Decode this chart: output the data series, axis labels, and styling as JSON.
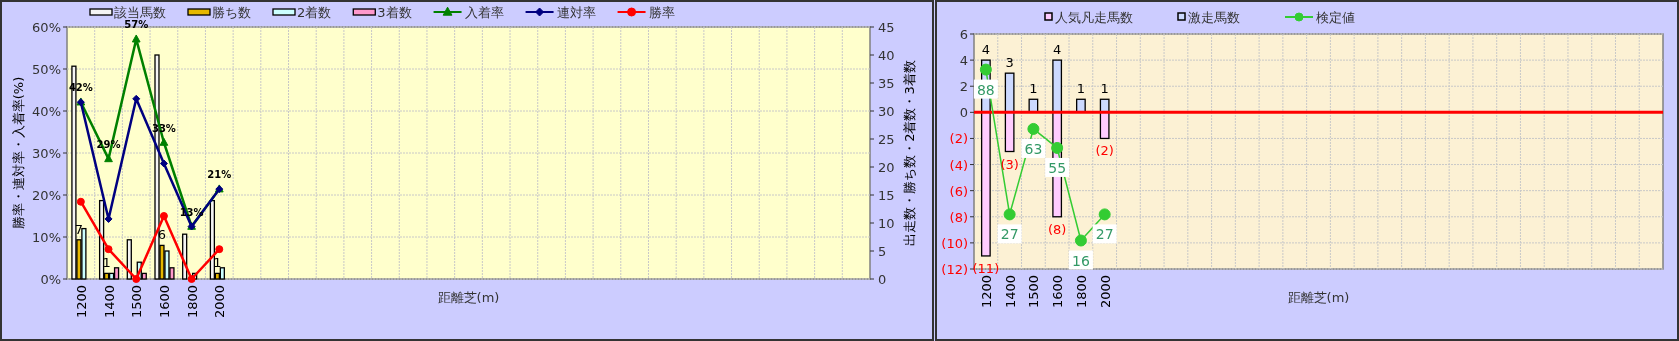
{
  "chart_data": [
    {
      "type": "bar",
      "xlabel": "距離芝(m)",
      "ylabel": "勝率・連対率・入着率(%)",
      "y2label": "出走数・勝ち数・2着数・3着数",
      "legend": "top",
      "grid": true,
      "categories": [
        "1200",
        "1400",
        "1500",
        "1600",
        "1800",
        "2000",
        null,
        null,
        null,
        null,
        null,
        null,
        null,
        null,
        null,
        null,
        null,
        null,
        null,
        null,
        null,
        null,
        null,
        null,
        null,
        null,
        null,
        null,
        null
      ],
      "ylim": [
        0,
        60
      ],
      "yticks": [
        {
          "value": 0,
          "label": "0%"
        },
        {
          "value": 10,
          "label": "10%"
        },
        {
          "value": 20,
          "label": "20%"
        },
        {
          "value": 30,
          "label": "30%"
        },
        {
          "value": 40,
          "label": "40%"
        },
        {
          "value": 50,
          "label": "50%"
        },
        {
          "value": 60,
          "label": "60%"
        }
      ],
      "y2lim": [
        0,
        45
      ],
      "y2ticks": [
        0,
        5,
        10,
        15,
        20,
        25,
        30,
        35,
        40,
        45
      ],
      "series": [
        {
          "name": "該当馬数",
          "axis": "y2",
          "color": "#f4f4f4",
          "values": [
            38,
            14,
            7,
            40,
            8,
            14,
            null,
            null,
            null,
            null,
            null,
            null,
            null,
            null,
            null,
            null,
            null,
            null,
            null,
            null,
            null,
            null,
            null,
            null,
            null,
            null,
            null,
            null,
            null
          ]
        },
        {
          "name": "勝ち数",
          "axis": "y2",
          "color": "#e6b800",
          "values": [
            7,
            1,
            0,
            6,
            0,
            1,
            null,
            null,
            null,
            null,
            null,
            null,
            null,
            null,
            null,
            null,
            null,
            null,
            null,
            null,
            null,
            null,
            null,
            null,
            null,
            null,
            null,
            null,
            null
          ],
          "value_labels": [
            "7",
            "1",
            null,
            "6",
            null,
            "1",
            null,
            null,
            null,
            null,
            null,
            null,
            null,
            null,
            null,
            null,
            null,
            null,
            null,
            null,
            null,
            null,
            null,
            null,
            null,
            null,
            null,
            null,
            null
          ]
        },
        {
          "name": "2着数",
          "axis": "y2",
          "color": "#ccffff",
          "values": [
            9,
            1,
            3,
            5,
            1,
            2,
            null,
            null,
            null,
            null,
            null,
            null,
            null,
            null,
            null,
            null,
            null,
            null,
            null,
            null,
            null,
            null,
            null,
            null,
            null,
            null,
            null,
            null,
            null
          ]
        },
        {
          "name": "3着数",
          "axis": "y2",
          "color": "#ff99cc",
          "values": [
            0,
            2,
            1,
            2,
            0,
            0,
            null,
            null,
            null,
            null,
            null,
            null,
            null,
            null,
            null,
            null,
            null,
            null,
            null,
            null,
            null,
            null,
            null,
            null,
            null,
            null,
            null,
            null,
            null
          ]
        },
        {
          "name": "入着率",
          "type": "line",
          "marker": "triangle",
          "color": "#008000",
          "values": [
            42.1,
            28.6,
            57.1,
            32.5,
            12.5,
            21.4,
            null,
            null,
            null,
            null,
            null,
            null,
            null,
            null,
            null,
            null,
            null,
            null,
            null,
            null,
            null,
            null,
            null,
            null,
            null,
            null,
            null,
            null,
            null
          ],
          "value_labels": [
            "42%",
            "29%",
            "57%",
            "33%",
            "13%",
            "21%",
            null,
            null,
            null,
            null,
            null,
            null,
            null,
            null,
            null,
            null,
            null,
            null,
            null,
            null,
            null,
            null,
            null,
            null,
            null,
            null,
            null,
            null,
            null
          ]
        },
        {
          "name": "連対率",
          "type": "line",
          "marker": "diamond",
          "color": "#000080",
          "values": [
            42.1,
            14.3,
            42.9,
            27.5,
            12.5,
            21.4,
            null,
            null,
            null,
            null,
            null,
            null,
            null,
            null,
            null,
            null,
            null,
            null,
            null,
            null,
            null,
            null,
            null,
            null,
            null,
            null,
            null,
            null,
            null
          ]
        },
        {
          "name": "勝率",
          "type": "line",
          "marker": "circle",
          "color": "#ff0000",
          "values": [
            18.4,
            7.1,
            0,
            15,
            0,
            7.1,
            null,
            null,
            null,
            null,
            null,
            null,
            null,
            null,
            null,
            null,
            null,
            null,
            null,
            null,
            null,
            null,
            null,
            null,
            null,
            null,
            null,
            null,
            null
          ]
        }
      ]
    },
    {
      "type": "bar",
      "xlabel": "距離芝(m)",
      "legend": "top",
      "grid": true,
      "stacked": true,
      "categories": [
        "1200",
        "1400",
        "1500",
        "1600",
        "1800",
        "2000",
        null,
        null,
        null,
        null,
        null,
        null,
        null,
        null,
        null,
        null,
        null,
        null,
        null,
        null,
        null,
        null,
        null,
        null,
        null,
        null,
        null,
        null,
        null
      ],
      "ylim": [
        -12,
        6
      ],
      "yticks": [
        {
          "value": -12,
          "label": "(12)"
        },
        {
          "value": -10,
          "label": "(10)"
        },
        {
          "value": -8,
          "label": "(8)"
        },
        {
          "value": -6,
          "label": "(6)"
        },
        {
          "value": -4,
          "label": "(4)"
        },
        {
          "value": -2,
          "label": "(2)"
        },
        0,
        2,
        4,
        6
      ],
      "y2lim": [
        4,
        103
      ],
      "ref_lines": [
        {
          "axis": "y",
          "value": 0,
          "color": "#ff0000"
        }
      ],
      "series": [
        {
          "name": "人気凡走馬数",
          "color": "#ffccff",
          "values": [
            -11,
            -3,
            0,
            -8,
            0,
            -2,
            null,
            null,
            null,
            null,
            null,
            null,
            null,
            null,
            null,
            null,
            null,
            null,
            null,
            null,
            null,
            null,
            null,
            null,
            null,
            null,
            null,
            null,
            null
          ],
          "value_labels": [
            "(11)",
            "(3)",
            null,
            "(8)",
            null,
            "(2)",
            null,
            null,
            null,
            null,
            null,
            null,
            null,
            null,
            null,
            null,
            null,
            null,
            null,
            null,
            null,
            null,
            null,
            null,
            null,
            null,
            null,
            null,
            null
          ]
        },
        {
          "name": "激走馬数",
          "color": "#ccd9ff",
          "values": [
            4,
            3,
            1,
            4,
            1,
            1,
            null,
            null,
            null,
            null,
            null,
            null,
            null,
            null,
            null,
            null,
            null,
            null,
            null,
            null,
            null,
            null,
            null,
            null,
            null,
            null,
            null,
            null,
            null
          ],
          "value_labels": [
            "4",
            "3",
            "1",
            "4",
            "1",
            "1",
            null,
            null,
            null,
            null,
            null,
            null,
            null,
            null,
            null,
            null,
            null,
            null,
            null,
            null,
            null,
            null,
            null,
            null,
            null,
            null,
            null,
            null,
            null
          ]
        },
        {
          "name": "検定値",
          "type": "line",
          "axis": "y2",
          "marker": "circle",
          "color": "#33cc33",
          "values": [
            88,
            27,
            63,
            55,
            16,
            27,
            null,
            null,
            null,
            null,
            null,
            null,
            null,
            null,
            null,
            null,
            null,
            null,
            null,
            null,
            null,
            null,
            null,
            null,
            null,
            null,
            null,
            null,
            null
          ],
          "value_labels": [
            "88",
            "27",
            "63",
            "55",
            "16",
            "27",
            null,
            null,
            null,
            null,
            null,
            null,
            null,
            null,
            null,
            null,
            null,
            null,
            null,
            null,
            null,
            null,
            null,
            null,
            null,
            null,
            null,
            null,
            null
          ]
        }
      ]
    }
  ]
}
